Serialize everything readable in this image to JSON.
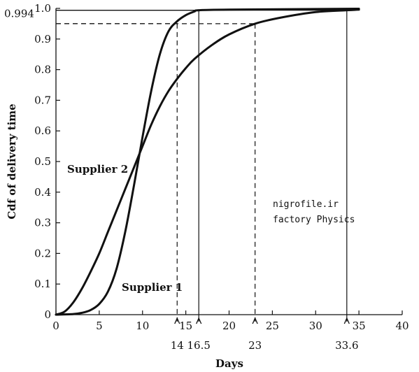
{
  "chart_data": {
    "type": "line",
    "title": "",
    "xlabel": "Days",
    "ylabel": "Cdf of delivery time",
    "xlim": [
      0,
      40
    ],
    "ylim": [
      0,
      1.0
    ],
    "xticks": [
      0,
      5,
      10,
      15,
      20,
      25,
      30,
      35,
      40
    ],
    "yticks": [
      0,
      0.1,
      0.2,
      0.3,
      0.4,
      0.5,
      0.6,
      0.7,
      0.8,
      0.9,
      1.0
    ],
    "ytick_labels": [
      "0",
      "0.1",
      "0.2",
      "0.3",
      "0.4",
      "0.5",
      "0.6",
      "0.7",
      "0.8",
      "0.9",
      "1.0"
    ],
    "xtick_labels": [
      "0",
      "5",
      "10",
      "15",
      "20",
      "25",
      "30",
      "35",
      "40"
    ],
    "grid": false,
    "series": [
      {
        "name": "Supplier 1",
        "x": [
          0,
          2,
          3,
          4,
          5,
          6,
          7,
          8,
          9,
          10,
          11,
          12,
          13,
          14,
          15,
          16,
          16.5,
          20,
          35
        ],
        "y": [
          0,
          0.002,
          0.006,
          0.015,
          0.035,
          0.075,
          0.15,
          0.27,
          0.42,
          0.58,
          0.73,
          0.85,
          0.925,
          0.958,
          0.978,
          0.99,
          0.994,
          0.996,
          0.999
        ]
      },
      {
        "name": "Supplier 2",
        "x": [
          0,
          1,
          2,
          3,
          4,
          5,
          6,
          7,
          8,
          9,
          10,
          11,
          12,
          13,
          14,
          15,
          16,
          18,
          20,
          23,
          26,
          30,
          33.6,
          35
        ],
        "y": [
          0,
          0.01,
          0.04,
          0.085,
          0.14,
          0.2,
          0.27,
          0.34,
          0.41,
          0.48,
          0.55,
          0.62,
          0.68,
          0.73,
          0.77,
          0.805,
          0.835,
          0.88,
          0.915,
          0.95,
          0.97,
          0.988,
          0.994,
          0.996
        ]
      }
    ],
    "reference_lines": [
      {
        "style": "dashed",
        "x": 14,
        "y": 0.95
      },
      {
        "style": "solid",
        "x": 16.5,
        "y": 0.994
      },
      {
        "style": "dashed",
        "x": 23,
        "y": 0.95
      },
      {
        "style": "solid",
        "x": 33.6,
        "y": 0.994
      }
    ],
    "special_x_labels": [
      "14",
      "16.5",
      "23",
      "33.6"
    ],
    "special_y_label": "0.994",
    "annotations": [
      "nigrofile.ir",
      "factory Physics"
    ]
  }
}
